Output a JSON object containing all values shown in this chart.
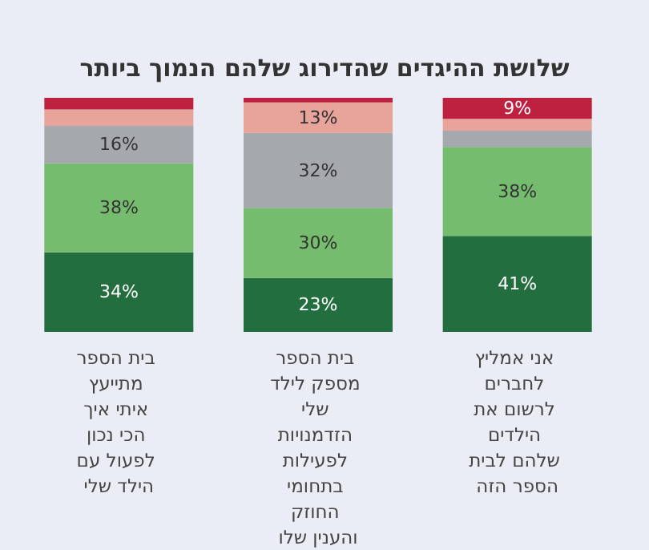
{
  "chart_data": {
    "type": "bar",
    "stacked": true,
    "title": "שלושת ההיגדים שהדירוג שלהם הנמוך ביותר",
    "categories": [
      "בית הספר מתייעץ איתי איך הכי נכון לפעול עם הילד שלי",
      "בית הספר מספק לילד שלי הזדמנויות לפעילות בתחומי החוזק והענין שלו",
      "אני אמליץ לחברים לרשום את הילדים שלהם לבית הספר הזה"
    ],
    "ylim": [
      0,
      100
    ],
    "series": [
      {
        "color": "#236e3f",
        "values": [
          34,
          23,
          41
        ],
        "value_labels": [
          "34%",
          "23%",
          "41%"
        ]
      },
      {
        "color": "#76bc6e",
        "values": [
          38,
          30,
          38
        ],
        "value_labels": [
          "38%",
          "30%",
          "38%"
        ]
      },
      {
        "color": "#a5a8ac",
        "values": [
          16,
          32,
          7
        ],
        "value_labels": [
          "16%",
          "32%",
          null
        ]
      },
      {
        "color": "#e8a39b",
        "values": [
          7,
          13,
          5
        ],
        "value_labels": [
          null,
          "13%",
          null
        ]
      },
      {
        "color": "#be2040",
        "values": [
          5,
          2,
          9
        ],
        "value_labels": [
          null,
          null,
          "9%"
        ]
      }
    ]
  }
}
